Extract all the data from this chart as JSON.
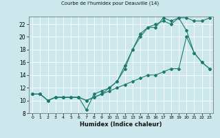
{
  "title": "Courbe de l'humidex pour Deauville (14)",
  "xlabel": "Humidex (Indice chaleur)",
  "bg_color": "#cce8ec",
  "grid_color": "#ffffff",
  "line_color": "#1e7a6e",
  "xlim": [
    -0.5,
    23.5
  ],
  "ylim": [
    8,
    23.2
  ],
  "xticks": [
    0,
    1,
    2,
    3,
    4,
    5,
    6,
    7,
    8,
    9,
    10,
    11,
    12,
    13,
    14,
    15,
    16,
    17,
    18,
    19,
    20,
    21,
    22,
    23
  ],
  "yticks": [
    8,
    10,
    12,
    14,
    16,
    18,
    20,
    22
  ],
  "line1_x": [
    0,
    1,
    2,
    3,
    4,
    5,
    6,
    7,
    8,
    9,
    10,
    11,
    12,
    13,
    14,
    15,
    16,
    17,
    18,
    19,
    20,
    21,
    22,
    23
  ],
  "line1_y": [
    11,
    11,
    10,
    10.5,
    10.5,
    10.5,
    10.5,
    8.5,
    11,
    11.5,
    12,
    13,
    15.5,
    18,
    20.5,
    21.5,
    21.5,
    23,
    22.5,
    23,
    21,
    17.5,
    16,
    15
  ],
  "line2_x": [
    0,
    1,
    2,
    3,
    4,
    5,
    6,
    7,
    8,
    9,
    10,
    11,
    12,
    13,
    14,
    15,
    16,
    17,
    18,
    19,
    20,
    21,
    22,
    23
  ],
  "line2_y": [
    11,
    11,
    10,
    10.5,
    10.5,
    10.5,
    10.5,
    10,
    10.5,
    11,
    11.5,
    12,
    12.5,
    13,
    13.5,
    14,
    14,
    14.5,
    15,
    15,
    20,
    17.5,
    16,
    15
  ],
  "line3_x": [
    0,
    1,
    2,
    3,
    4,
    5,
    6,
    7,
    8,
    9,
    10,
    11,
    12,
    13,
    14,
    15,
    16,
    17,
    18,
    19,
    20,
    21,
    22,
    23
  ],
  "line3_y": [
    11,
    11,
    10,
    10.5,
    10.5,
    10.5,
    10.5,
    10,
    10.5,
    11,
    12,
    13,
    15,
    18,
    20,
    21.5,
    22,
    22.5,
    22,
    23,
    23,
    22.5,
    22.5,
    23
  ]
}
